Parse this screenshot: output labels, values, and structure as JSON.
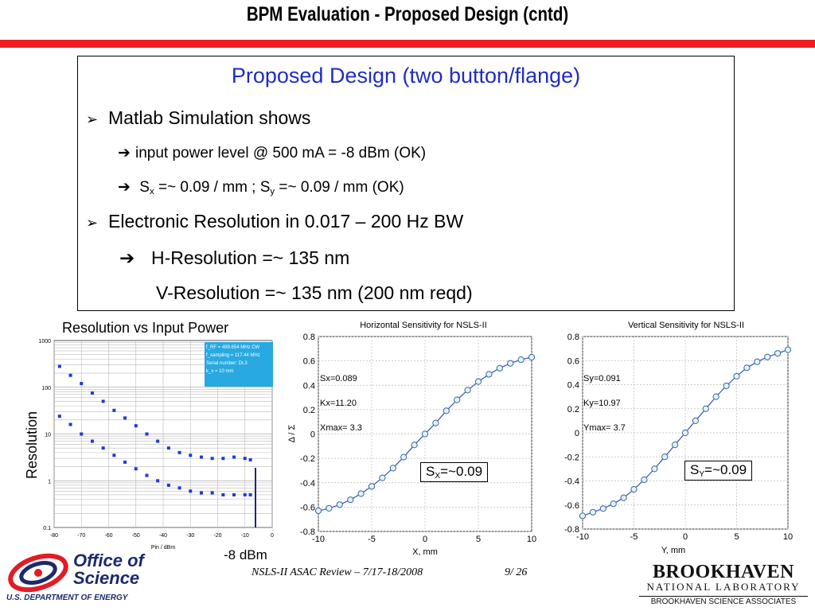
{
  "slide": {
    "title": "BPM Evaluation - Proposed Design (cntd)",
    "box_title": "Proposed Design (two button/flange)",
    "bullets": [
      {
        "marker": "➢",
        "text": "Matlab Simulation shows"
      },
      {
        "marker": "➢",
        "text": "Electronic Resolution in 0.017 – 200 Hz BW"
      }
    ],
    "sub1_arrow": "➔",
    "sub1_text": "input power level @ 500 mA = -8 dBm (OK)",
    "sub2_arrow": "➔",
    "sub2_sx_s": "S",
    "sub2_sx_sub": "x",
    "sub2_mid": " =~ 0.09 / mm ; S",
    "sub2_sy_sub": "y",
    "sub2_end": " =~ 0.09 / mm (OK)",
    "sub3_arrow": "➔",
    "sub3_text": "H-Resolution =~ 135 nm",
    "sub4_text": "V-Resolution =~ 135 nm (200 nm reqd)"
  },
  "left_chart": {
    "title": "Resolution vs Input Power",
    "ylabel": "Resolution",
    "xlabel": "Pin / dBm",
    "xticks": [
      "-80",
      "-70",
      "-60",
      "-50",
      "-40",
      "-30",
      "-20",
      "-10",
      "0"
    ],
    "yticks": [
      "1000",
      "100",
      "10",
      "1",
      "0.1"
    ],
    "legend_lines": [
      "f_RF = 499.654 MHz CW",
      "f_sampling = 117.44 MHz",
      "Serial number: DL3",
      "k_x = 10 mm"
    ],
    "annotation": "-8 dBm"
  },
  "chart_data": [
    {
      "type": "scatter",
      "title": "Resolution vs Input Power",
      "xlabel": "Pin / dBm",
      "ylabel": "Resolution",
      "yscale": "log",
      "xlim": [
        -80,
        0
      ],
      "ylim": [
        0.1,
        1000
      ],
      "series": [
        {
          "x": [
            -78,
            -74,
            -70,
            -66,
            -62,
            -58,
            -54,
            -50,
            -46,
            -42,
            -38,
            -34,
            -30,
            -26,
            -22,
            -18,
            -14,
            -10,
            -8
          ],
          "y": [
            280,
            180,
            120,
            75,
            50,
            32,
            22,
            15,
            10,
            7,
            5,
            4,
            3.5,
            3.2,
            3,
            3,
            3.2,
            3,
            2.8
          ]
        },
        {
          "x": [
            -78,
            -74,
            -70,
            -66,
            -62,
            -58,
            -54,
            -50,
            -46,
            -42,
            -38,
            -34,
            -30,
            -26,
            -22,
            -18,
            -14,
            -10,
            -8
          ],
          "y": [
            24,
            16,
            10,
            7,
            5,
            3.5,
            2.5,
            1.8,
            1.3,
            1,
            0.8,
            0.7,
            0.6,
            0.55,
            0.55,
            0.5,
            0.5,
            0.5,
            0.5
          ]
        }
      ]
    },
    {
      "type": "line",
      "title": "Horizontal Sensitivity for NSLS-II",
      "xlabel": "X, mm",
      "ylabel": "Δ / Σ",
      "xlim": [
        -10,
        10
      ],
      "ylim": [
        -0.8,
        0.8
      ],
      "xticks": [
        "-10",
        "-5",
        "0",
        "5",
        "10"
      ],
      "yticks": [
        "0.8",
        "0.6",
        "0.4",
        "0.2",
        "0",
        "-0.2",
        "-0.4",
        "-0.6",
        "-0.8"
      ],
      "annotations": [
        "Sx=0.089",
        "Kx=11.20",
        "Xmax= 3.3"
      ],
      "x": [
        -10,
        -9,
        -8,
        -7,
        -6,
        -5,
        -4,
        -3,
        -2,
        -1,
        0,
        1,
        2,
        3,
        4,
        5,
        6,
        7,
        8,
        9,
        10
      ],
      "y": [
        -0.63,
        -0.61,
        -0.58,
        -0.54,
        -0.49,
        -0.43,
        -0.36,
        -0.28,
        -0.19,
        -0.09,
        0,
        0.09,
        0.19,
        0.28,
        0.36,
        0.43,
        0.49,
        0.54,
        0.58,
        0.61,
        0.63
      ]
    },
    {
      "type": "line",
      "title": "Vertical Sensitivity for NSLS-II",
      "xlabel": "Y, mm",
      "ylabel": "",
      "xlim": [
        -10,
        10
      ],
      "ylim": [
        -0.8,
        0.8
      ],
      "xticks": [
        "-10",
        "-5",
        "0",
        "5",
        "10"
      ],
      "yticks": [
        "0.8",
        "0.6",
        "0.4",
        "0.2",
        "0",
        "-0.2",
        "-0.4",
        "-0.6",
        "-0.8"
      ],
      "annotations": [
        "Sy=0.091",
        "Ky=10.97",
        "Ymax= 3.7"
      ],
      "x": [
        -10,
        -9,
        -8,
        -7,
        -6,
        -5,
        -4,
        -3,
        -2,
        -1,
        0,
        1,
        2,
        3,
        4,
        5,
        6,
        7,
        8,
        9,
        10
      ],
      "y": [
        -0.69,
        -0.66,
        -0.63,
        -0.59,
        -0.54,
        -0.47,
        -0.39,
        -0.3,
        -0.2,
        -0.1,
        0,
        0.1,
        0.2,
        0.3,
        0.39,
        0.47,
        0.54,
        0.59,
        0.63,
        0.66,
        0.69
      ]
    }
  ],
  "sx_label": {
    "prefix": "S",
    "sub": "X",
    "suffix": "=~0.09"
  },
  "sy_label": {
    "prefix": "S",
    "sub": "Y",
    "suffix": "=~0.09"
  },
  "footer": {
    "text": "NSLS-II ASAC  Review  – 7/17-18/2008",
    "page": "9/ 26",
    "logo_left_line1": "Office of",
    "logo_left_line2": "Science",
    "logo_left_line3": "U.S. DEPARTMENT OF ENERGY",
    "logo_right_line1": "BROOKHAVEN",
    "logo_right_line2": "NATIONAL LABORATORY",
    "logo_right_line3": "BROOKHAVEN SCIENCE ASSOCIATES"
  },
  "colors": {
    "accent_red": "#ee1c25",
    "title_blue": "#1f2dbf",
    "marker_blue": "#1f3ad6",
    "dark_navy": "#1c2a6b"
  }
}
